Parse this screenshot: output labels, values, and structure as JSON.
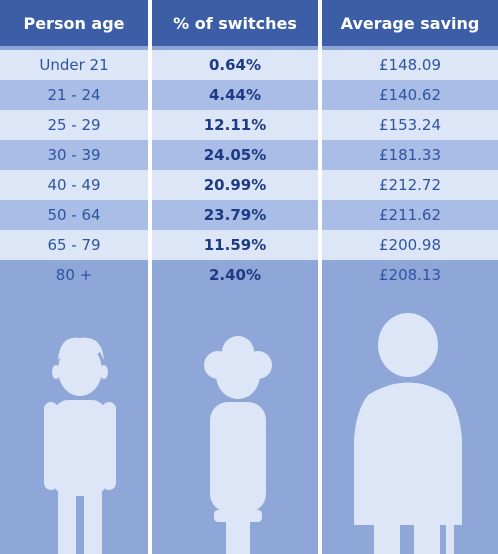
{
  "table": {
    "header": [
      "Person age",
      "% of switches",
      "Average saving"
    ],
    "rows": [
      [
        "Under 21",
        "0.64%",
        "£148.09"
      ],
      [
        "21 - 24",
        "4.44%",
        "£140.62"
      ],
      [
        "25 - 29",
        "12.11%",
        "£153.24"
      ],
      [
        "30 - 39",
        "24.05%",
        "£181.33"
      ],
      [
        "40 - 49",
        "20.99%",
        "£212.72"
      ],
      [
        "50 - 64",
        "23.79%",
        "£211.62"
      ],
      [
        "65 - 79",
        "11.59%",
        "£200.98"
      ],
      [
        "80 +",
        "2.40%",
        "£208.13"
      ]
    ]
  }
}
